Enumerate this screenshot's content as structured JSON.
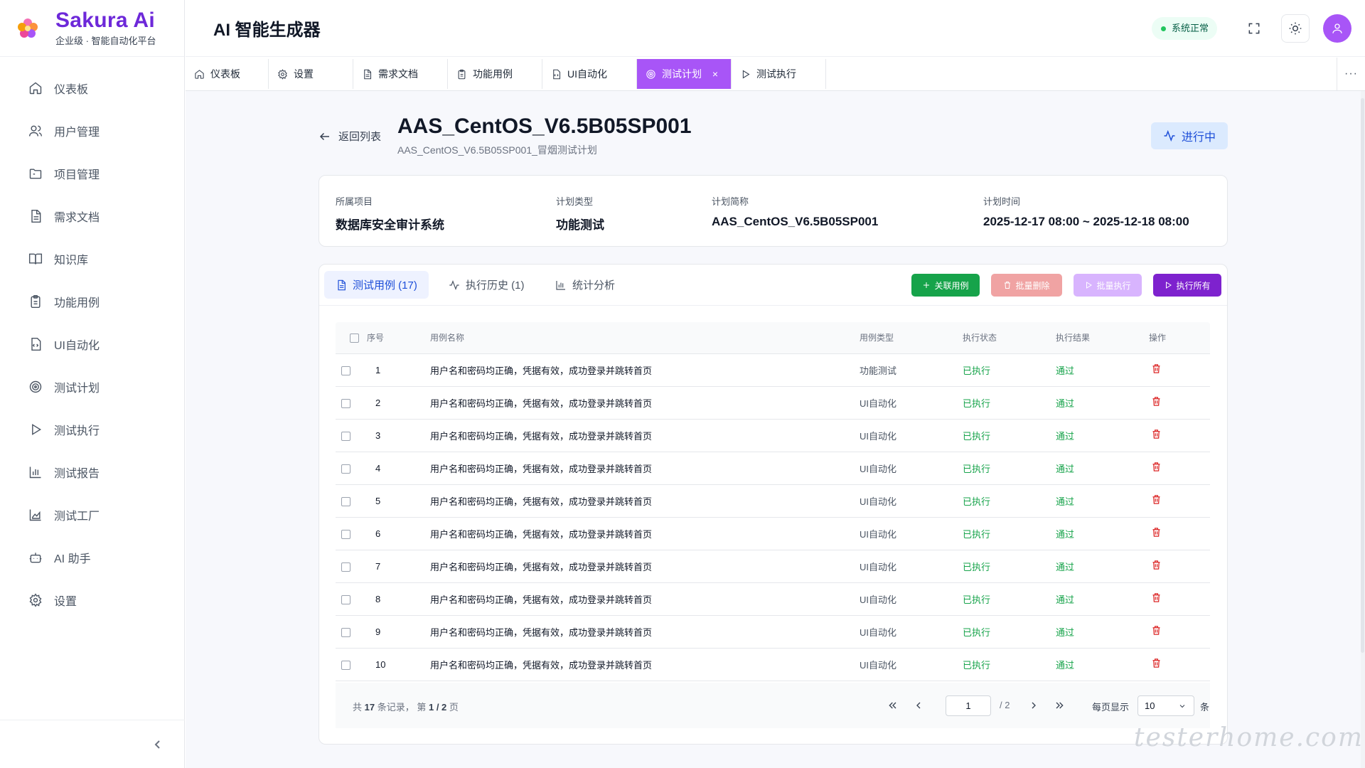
{
  "brand": {
    "name": "Sakura Ai",
    "tagline": "企业级 · 智能自动化平台"
  },
  "sidebar": {
    "items": [
      {
        "label": "仪表板",
        "icon": "home-icon"
      },
      {
        "label": "用户管理",
        "icon": "users-icon"
      },
      {
        "label": "项目管理",
        "icon": "folder-icon"
      },
      {
        "label": "需求文档",
        "icon": "document-icon"
      },
      {
        "label": "知识库",
        "icon": "book-icon"
      },
      {
        "label": "功能用例",
        "icon": "clipboard-icon"
      },
      {
        "label": "UI自动化",
        "icon": "code-file-icon"
      },
      {
        "label": "测试计划",
        "icon": "target-icon"
      },
      {
        "label": "测试执行",
        "icon": "play-icon"
      },
      {
        "label": "测试报告",
        "icon": "bar-chart-icon"
      },
      {
        "label": "测试工厂",
        "icon": "area-chart-icon"
      },
      {
        "label": "AI 助手",
        "icon": "bot-icon"
      },
      {
        "label": "设置",
        "icon": "gear-icon"
      }
    ]
  },
  "header": {
    "title": "AI 智能生成器",
    "status": "系统正常"
  },
  "tabs": [
    {
      "label": "仪表板",
      "icon": "home-icon",
      "active": false
    },
    {
      "label": "设置",
      "icon": "gear-icon",
      "active": false
    },
    {
      "label": "需求文档",
      "icon": "document-icon",
      "active": false
    },
    {
      "label": "功能用例",
      "icon": "clipboard-icon",
      "active": false
    },
    {
      "label": "UI自动化",
      "icon": "code-file-icon",
      "active": false
    },
    {
      "label": "测试计划",
      "icon": "target-icon",
      "active": true
    },
    {
      "label": "测试执行",
      "icon": "play-icon",
      "active": false
    }
  ],
  "tab_more": "···",
  "plan": {
    "back_label": "返回列表",
    "title": "AAS_CentOS_V6.5B05SP001",
    "subtitle": "AAS_CentOS_V6.5B05SP001_冒烟测试计划",
    "status": "进行中",
    "info": [
      {
        "label": "所属项目",
        "value": "数据库安全审计系统"
      },
      {
        "label": "计划类型",
        "value": "功能测试"
      },
      {
        "label": "计划简称",
        "value": "AAS_CentOS_V6.5B05SP001"
      },
      {
        "label": "计划时间",
        "value": "2025-12-17 08:00 ~ 2025-12-18 08:00"
      }
    ]
  },
  "subtabs": [
    {
      "label": "测试用例 (17)",
      "icon": "document-icon",
      "active": true
    },
    {
      "label": "执行历史 (1)",
      "icon": "activity-icon",
      "active": false
    },
    {
      "label": "统计分析",
      "icon": "bar-chart-icon",
      "active": false
    }
  ],
  "actions": [
    {
      "label": "关联用例",
      "icon": "plus-icon",
      "color": "#16a34a"
    },
    {
      "label": "批量删除",
      "icon": "trash-icon",
      "color": "#f0a3a3"
    },
    {
      "label": "批量执行",
      "icon": "play-icon",
      "color": "#d8b4fe"
    },
    {
      "label": "执行所有",
      "icon": "play-icon",
      "color": "#7e22ce"
    }
  ],
  "table": {
    "headers": [
      "序号",
      "用例名称",
      "用例类型",
      "执行状态",
      "执行结果",
      "操作"
    ],
    "rows": [
      {
        "no": "1",
        "name": "用户名和密码均正确，凭据有效，成功登录并跳转首页",
        "type": "功能测试",
        "status": "已执行",
        "result": "通过"
      },
      {
        "no": "2",
        "name": "用户名和密码均正确，凭据有效，成功登录并跳转首页",
        "type": "UI自动化",
        "status": "已执行",
        "result": "通过"
      },
      {
        "no": "3",
        "name": "用户名和密码均正确，凭据有效，成功登录并跳转首页",
        "type": "UI自动化",
        "status": "已执行",
        "result": "通过"
      },
      {
        "no": "4",
        "name": "用户名和密码均正确，凭据有效，成功登录并跳转首页",
        "type": "UI自动化",
        "status": "已执行",
        "result": "通过"
      },
      {
        "no": "5",
        "name": "用户名和密码均正确，凭据有效，成功登录并跳转首页",
        "type": "UI自动化",
        "status": "已执行",
        "result": "通过"
      },
      {
        "no": "6",
        "name": "用户名和密码均正确，凭据有效，成功登录并跳转首页",
        "type": "UI自动化",
        "status": "已执行",
        "result": "通过"
      },
      {
        "no": "7",
        "name": "用户名和密码均正确，凭据有效，成功登录并跳转首页",
        "type": "UI自动化",
        "status": "已执行",
        "result": "通过"
      },
      {
        "no": "8",
        "name": "用户名和密码均正确，凭据有效，成功登录并跳转首页",
        "type": "UI自动化",
        "status": "已执行",
        "result": "通过"
      },
      {
        "no": "9",
        "name": "用户名和密码均正确，凭据有效，成功登录并跳转首页",
        "type": "UI自动化",
        "status": "已执行",
        "result": "通过"
      },
      {
        "no": "10",
        "name": "用户名和密码均正确，凭据有效，成功登录并跳转首页",
        "type": "UI自动化",
        "status": "已执行",
        "result": "通过"
      }
    ]
  },
  "pagination": {
    "total_prefix": "共",
    "total": "17",
    "total_mid": "条记录，  第",
    "page_display": "1 / 2",
    "page_suffix": "页",
    "current_page": "1",
    "total_pages": "/ 2",
    "page_size_label": "每页显示",
    "page_size": "10",
    "page_size_unit": "条"
  },
  "watermark": "testerhome.com",
  "colors": {
    "brand": "#6d28d9",
    "active_tab": "#a855f7",
    "success": "#16a34a",
    "danger": "#dc2626"
  }
}
